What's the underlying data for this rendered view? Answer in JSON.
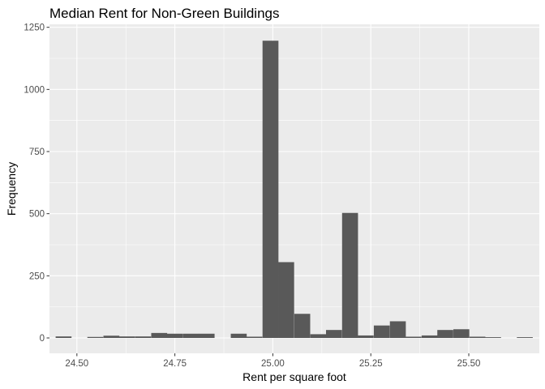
{
  "chart_data": {
    "type": "bar",
    "subtype": "histogram",
    "title": "Median Rent for Non-Green Buildings",
    "xlabel": "Rent per square foot",
    "ylabel": "Frequency",
    "xlim": [
      24.43,
      25.68
    ],
    "ylim": [
      -62,
      1262
    ],
    "x_ticks": [
      24.5,
      24.75,
      25.0,
      25.25,
      25.5
    ],
    "x_tick_labels": [
      "24.50",
      "24.75",
      "25.00",
      "25.25",
      "25.50"
    ],
    "y_ticks": [
      0,
      250,
      500,
      750,
      1000,
      1250
    ],
    "y_tick_labels": [
      "0",
      "250",
      "500",
      "750",
      "1000",
      "1250"
    ],
    "bin_width": 0.0406,
    "bins": [
      {
        "x": 24.466,
        "count": 6
      },
      {
        "x": 24.507,
        "count": 0
      },
      {
        "x": 24.547,
        "count": 4
      },
      {
        "x": 24.588,
        "count": 9
      },
      {
        "x": 24.628,
        "count": 6
      },
      {
        "x": 24.669,
        "count": 6
      },
      {
        "x": 24.71,
        "count": 20
      },
      {
        "x": 24.75,
        "count": 17
      },
      {
        "x": 24.791,
        "count": 17
      },
      {
        "x": 24.831,
        "count": 17
      },
      {
        "x": 24.872,
        "count": 0
      },
      {
        "x": 24.913,
        "count": 17
      },
      {
        "x": 24.953,
        "count": 5
      },
      {
        "x": 24.994,
        "count": 1196
      },
      {
        "x": 25.034,
        "count": 305
      },
      {
        "x": 25.075,
        "count": 97
      },
      {
        "x": 25.116,
        "count": 15
      },
      {
        "x": 25.156,
        "count": 32
      },
      {
        "x": 25.197,
        "count": 503
      },
      {
        "x": 25.237,
        "count": 10
      },
      {
        "x": 25.278,
        "count": 50
      },
      {
        "x": 25.319,
        "count": 67
      },
      {
        "x": 25.359,
        "count": 5
      },
      {
        "x": 25.4,
        "count": 10
      },
      {
        "x": 25.44,
        "count": 32
      },
      {
        "x": 25.481,
        "count": 35
      },
      {
        "x": 25.522,
        "count": 5
      },
      {
        "x": 25.562,
        "count": 3
      },
      {
        "x": 25.603,
        "count": 0
      },
      {
        "x": 25.643,
        "count": 3
      }
    ],
    "grid": true,
    "colors": {
      "bar": "#595959",
      "panel_background": "#ebebeb",
      "grid_major": "#ffffff",
      "tick_text": "#4d4d4d"
    }
  }
}
